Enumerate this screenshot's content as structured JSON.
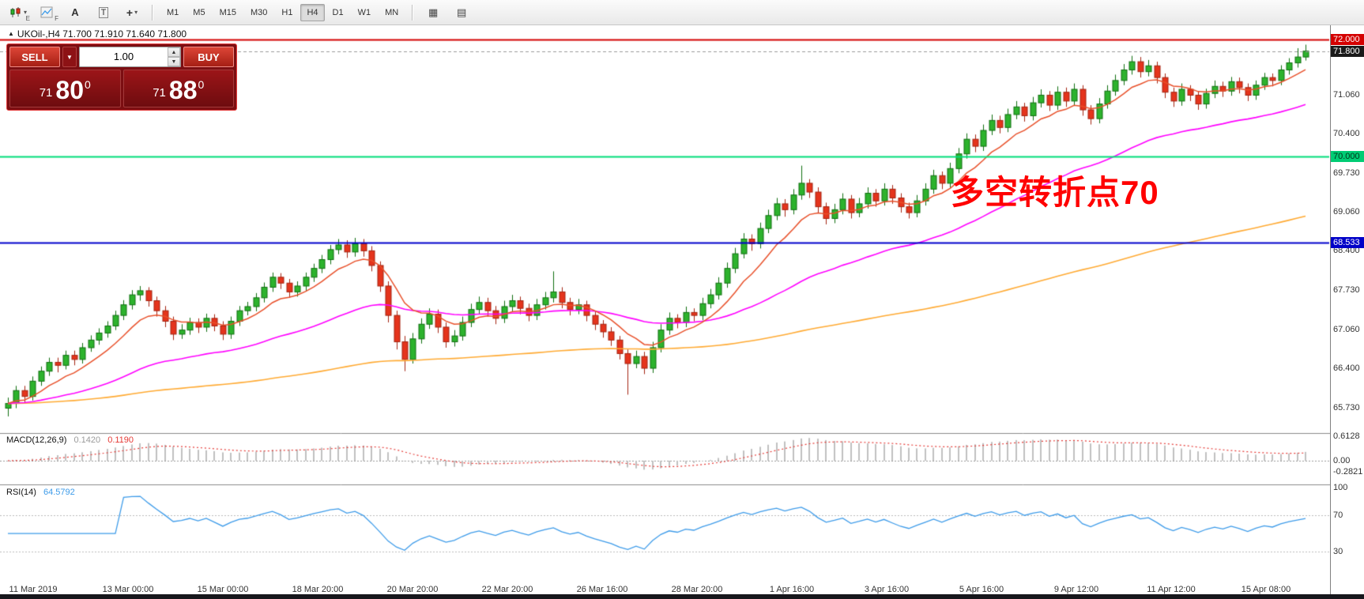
{
  "toolbar": {
    "letters": {
      "e": "E",
      "f": "F",
      "a": "A",
      "t": "T"
    },
    "crosshair_glyph": "+",
    "caret_glyph": "▾",
    "tile_icon_glyph": "▦",
    "list_icon_glyph": "▤",
    "timeframes": [
      "M1",
      "M5",
      "M15",
      "M30",
      "H1",
      "H4",
      "D1",
      "W1",
      "MN"
    ],
    "active_timeframe": "H4"
  },
  "header": {
    "collapse_icon": "▲",
    "symbol_line": "UKOil-,H4  71.700 71.910 71.640 71.800"
  },
  "trade_panel": {
    "sell_label": "SELL",
    "buy_label": "BUY",
    "volume": "1.00",
    "spin_up": "▲",
    "spin_down": "▼",
    "sell_caret": "▼",
    "bid_small": "71",
    "bid_big": "80",
    "bid_sup": "0",
    "ask_small": "71",
    "ask_big": "88",
    "ask_sup": "0"
  },
  "chart_data": {
    "type": "candlestick",
    "symbol": "UKOil-",
    "timeframe": "H4",
    "title": "UKOil-,H4",
    "ohlc_last": {
      "open": "71.700",
      "high": "71.910",
      "low": "71.640",
      "close": "71.800"
    },
    "ylim": [
      65.31,
      72.24
    ],
    "candle_colors": {
      "up_fill": "#2db32d",
      "up_border": "#0f6e0f",
      "down_fill": "#e5341c",
      "down_border": "#a32310"
    },
    "ma": {
      "fast": {
        "period": 9,
        "color": "#e8502a"
      },
      "mid": {
        "period": 42,
        "color": "#ff00ff"
      },
      "slow": {
        "period": 160,
        "color": "#ffaa33"
      }
    },
    "hlines": [
      {
        "price": 72.0,
        "color": "#d40000",
        "width": 2
      },
      {
        "price": 70.0,
        "color": "#00dd7a",
        "width": 2
      },
      {
        "price": 68.533,
        "color": "#0000cc",
        "width": 2
      }
    ],
    "bid_line": {
      "price": 71.8,
      "color": "#9a9a9a"
    },
    "price_axis_labels": [
      71.06,
      70.4,
      69.73,
      69.06,
      68.4,
      67.73,
      67.06,
      66.4,
      65.73
    ],
    "badges": [
      {
        "text": "72.000",
        "bg": "#d40000",
        "fg": "#ffffff",
        "price": 72.0
      },
      {
        "text": "71.800",
        "bg": "#1a1a1a",
        "fg": "#ffffff",
        "price": 71.8
      },
      {
        "text": "70.000",
        "bg": "#00cc74",
        "fg": "#00331a",
        "price": 70.0
      },
      {
        "text": "68.533",
        "bg": "#0000c8",
        "fg": "#ffffff",
        "price": 68.533
      }
    ],
    "annotation": {
      "text": "多空转折点70",
      "color": "#ff0000"
    },
    "macd": {
      "title": "MACD(12,26,9)",
      "value_main": "0.1420",
      "value_signal": "0.1190",
      "fast": 12,
      "slow": 26,
      "signal": 9,
      "range": [
        -0.58,
        0.68
      ],
      "axis": [
        {
          "v": 0.6128,
          "t": "0.6128"
        },
        {
          "v": 0,
          "t": "0.00"
        },
        {
          "v": -0.2821,
          "t": "-0.2821"
        }
      ],
      "hist_color": "#c0c0c0",
      "signal_color": "#e53935"
    },
    "rsi": {
      "title": "RSI(14)",
      "value": "64.5792",
      "period": 14,
      "levels": [
        70,
        30
      ],
      "range": [
        -2,
        103
      ],
      "axis": [
        {
          "v": 100,
          "t": "100"
        },
        {
          "v": 70,
          "t": "70"
        },
        {
          "v": 30,
          "t": "30"
        }
      ],
      "line_color": "#3d9be9"
    },
    "time_axis": {
      "labels": [
        "11 Mar 2019",
        "13 Mar 00:00",
        "15 Mar 00:00",
        "18 Mar 20:00",
        "20 Mar 20:00",
        "22 Mar 20:00",
        "26 Mar 16:00",
        "28 Mar 20:00",
        "1 Apr 16:00",
        "3 Apr 16:00",
        "5 Apr 16:00",
        "9 Apr 12:00",
        "11 Apr 12:00",
        "15 Apr 08:00"
      ]
    },
    "candles": [
      [
        65.72,
        65.9,
        65.58,
        65.8
      ],
      [
        65.8,
        66.1,
        65.72,
        66.02
      ],
      [
        66.02,
        66.1,
        65.8,
        65.92
      ],
      [
        65.92,
        66.26,
        65.85,
        66.18
      ],
      [
        66.18,
        66.43,
        66.1,
        66.35
      ],
      [
        66.35,
        66.58,
        66.27,
        66.5
      ],
      [
        66.5,
        66.58,
        66.33,
        66.45
      ],
      [
        66.45,
        66.7,
        66.38,
        66.62
      ],
      [
        66.62,
        66.7,
        66.45,
        66.55
      ],
      [
        66.55,
        66.83,
        66.48,
        66.75
      ],
      [
        66.75,
        66.96,
        66.68,
        66.88
      ],
      [
        66.88,
        67.08,
        66.8,
        67.0
      ],
      [
        67.0,
        67.2,
        66.92,
        67.12
      ],
      [
        67.12,
        67.38,
        67.05,
        67.3
      ],
      [
        67.3,
        67.56,
        67.22,
        67.48
      ],
      [
        67.48,
        67.73,
        67.4,
        67.65
      ],
      [
        67.65,
        67.8,
        67.55,
        67.72
      ],
      [
        67.72,
        67.78,
        67.45,
        67.55
      ],
      [
        67.55,
        67.62,
        67.28,
        67.38
      ],
      [
        67.38,
        67.46,
        67.1,
        67.2
      ],
      [
        67.2,
        67.28,
        66.88,
        66.98
      ],
      [
        66.98,
        67.15,
        66.9,
        67.05
      ],
      [
        67.05,
        67.26,
        66.97,
        67.18
      ],
      [
        67.18,
        67.25,
        67.0,
        67.1
      ],
      [
        67.1,
        67.33,
        67.02,
        67.25
      ],
      [
        67.25,
        67.32,
        67.03,
        67.12
      ],
      [
        67.12,
        67.2,
        66.88,
        66.98
      ],
      [
        66.98,
        67.28,
        66.9,
        67.2
      ],
      [
        67.2,
        67.46,
        67.12,
        67.38
      ],
      [
        67.38,
        67.53,
        67.3,
        67.45
      ],
      [
        67.45,
        67.68,
        67.37,
        67.6
      ],
      [
        67.6,
        67.86,
        67.52,
        67.78
      ],
      [
        67.78,
        68.03,
        67.7,
        67.95
      ],
      [
        67.95,
        68.02,
        67.75,
        67.85
      ],
      [
        67.85,
        67.92,
        67.6,
        67.7
      ],
      [
        67.7,
        67.88,
        67.62,
        67.8
      ],
      [
        67.8,
        68.03,
        67.72,
        67.95
      ],
      [
        67.95,
        68.18,
        67.87,
        68.1
      ],
      [
        68.1,
        68.33,
        68.02,
        68.25
      ],
      [
        68.25,
        68.5,
        68.17,
        68.42
      ],
      [
        68.42,
        68.6,
        68.34,
        68.5
      ],
      [
        68.5,
        68.58,
        68.28,
        68.38
      ],
      [
        68.38,
        68.62,
        68.3,
        68.52
      ],
      [
        68.52,
        68.6,
        68.3,
        68.4
      ],
      [
        68.4,
        68.48,
        68.05,
        68.15
      ],
      [
        68.15,
        68.22,
        67.7,
        67.8
      ],
      [
        67.8,
        67.88,
        67.18,
        67.3
      ],
      [
        67.3,
        67.38,
        66.72,
        66.85
      ],
      [
        66.85,
        66.95,
        66.35,
        66.55
      ],
      [
        66.55,
        67.0,
        66.48,
        66.9
      ],
      [
        66.9,
        67.25,
        66.82,
        67.15
      ],
      [
        67.15,
        67.42,
        67.07,
        67.32
      ],
      [
        67.32,
        67.4,
        67.0,
        67.1
      ],
      [
        67.1,
        67.18,
        66.75,
        66.85
      ],
      [
        66.85,
        67.05,
        66.77,
        66.95
      ],
      [
        66.95,
        67.28,
        66.87,
        67.18
      ],
      [
        67.18,
        67.5,
        67.1,
        67.4
      ],
      [
        67.4,
        67.62,
        67.32,
        67.52
      ],
      [
        67.52,
        67.6,
        67.28,
        67.38
      ],
      [
        67.38,
        67.46,
        67.15,
        67.25
      ],
      [
        67.25,
        67.55,
        67.17,
        67.45
      ],
      [
        67.45,
        67.65,
        67.37,
        67.55
      ],
      [
        67.55,
        67.62,
        67.32,
        67.42
      ],
      [
        67.42,
        67.5,
        67.2,
        67.3
      ],
      [
        67.3,
        67.58,
        67.22,
        67.48
      ],
      [
        67.48,
        67.7,
        67.4,
        67.6
      ],
      [
        67.6,
        68.05,
        67.52,
        67.7
      ],
      [
        67.7,
        67.78,
        67.42,
        67.52
      ],
      [
        67.52,
        67.6,
        67.3,
        67.4
      ],
      [
        67.4,
        67.58,
        67.32,
        67.48
      ],
      [
        67.48,
        67.55,
        67.2,
        67.3
      ],
      [
        67.3,
        67.38,
        67.05,
        67.15
      ],
      [
        67.15,
        67.22,
        66.92,
        67.02
      ],
      [
        67.02,
        67.1,
        66.78,
        66.88
      ],
      [
        66.88,
        66.95,
        66.55,
        66.65
      ],
      [
        66.65,
        66.72,
        65.95,
        66.48
      ],
      [
        66.48,
        66.7,
        66.4,
        66.6
      ],
      [
        66.6,
        66.68,
        66.3,
        66.4
      ],
      [
        66.4,
        66.85,
        66.32,
        66.75
      ],
      [
        66.75,
        67.15,
        66.67,
        67.05
      ],
      [
        67.05,
        67.35,
        66.97,
        67.25
      ],
      [
        67.25,
        67.32,
        67.08,
        67.18
      ],
      [
        67.18,
        67.45,
        67.1,
        67.35
      ],
      [
        67.35,
        67.42,
        67.2,
        67.3
      ],
      [
        67.3,
        67.6,
        67.22,
        67.5
      ],
      [
        67.5,
        67.75,
        67.42,
        67.65
      ],
      [
        67.65,
        67.95,
        67.57,
        67.85
      ],
      [
        67.85,
        68.2,
        67.77,
        68.1
      ],
      [
        68.1,
        68.45,
        68.02,
        68.35
      ],
      [
        68.35,
        68.7,
        68.27,
        68.6
      ],
      [
        68.6,
        68.68,
        68.4,
        68.52
      ],
      [
        68.52,
        68.88,
        68.44,
        68.78
      ],
      [
        68.78,
        69.1,
        68.7,
        69.0
      ],
      [
        69.0,
        69.3,
        68.92,
        69.2
      ],
      [
        69.2,
        69.28,
        68.98,
        69.1
      ],
      [
        69.1,
        69.45,
        69.02,
        69.35
      ],
      [
        69.35,
        69.85,
        69.27,
        69.55
      ],
      [
        69.55,
        69.62,
        69.3,
        69.4
      ],
      [
        69.4,
        69.48,
        69.05,
        69.15
      ],
      [
        69.15,
        69.22,
        68.85,
        68.95
      ],
      [
        68.95,
        69.2,
        68.87,
        69.1
      ],
      [
        69.1,
        69.38,
        69.02,
        69.28
      ],
      [
        69.28,
        69.35,
        68.95,
        69.05
      ],
      [
        69.05,
        69.3,
        68.97,
        69.2
      ],
      [
        69.2,
        69.48,
        69.12,
        69.38
      ],
      [
        69.38,
        69.45,
        69.15,
        69.25
      ],
      [
        69.25,
        69.55,
        69.17,
        69.45
      ],
      [
        69.45,
        69.52,
        69.2,
        69.3
      ],
      [
        69.3,
        69.38,
        69.05,
        69.15
      ],
      [
        69.15,
        69.22,
        68.95,
        69.05
      ],
      [
        69.05,
        69.35,
        68.97,
        69.25
      ],
      [
        69.25,
        69.55,
        69.17,
        69.45
      ],
      [
        69.45,
        69.78,
        69.37,
        69.68
      ],
      [
        69.68,
        69.75,
        69.45,
        69.55
      ],
      [
        69.55,
        69.9,
        69.47,
        69.8
      ],
      [
        69.8,
        70.15,
        69.72,
        70.05
      ],
      [
        70.05,
        70.4,
        69.97,
        70.3
      ],
      [
        70.3,
        70.38,
        70.08,
        70.18
      ],
      [
        70.18,
        70.55,
        70.1,
        70.45
      ],
      [
        70.45,
        70.72,
        70.37,
        70.62
      ],
      [
        70.62,
        70.7,
        70.4,
        70.5
      ],
      [
        70.5,
        70.82,
        70.42,
        70.72
      ],
      [
        70.72,
        70.95,
        70.64,
        70.85
      ],
      [
        70.85,
        70.92,
        70.6,
        70.7
      ],
      [
        70.7,
        71.02,
        70.62,
        70.92
      ],
      [
        70.92,
        71.15,
        70.84,
        71.05
      ],
      [
        71.05,
        71.12,
        70.78,
        70.88
      ],
      [
        70.88,
        71.2,
        70.8,
        71.1
      ],
      [
        71.1,
        71.18,
        70.85,
        70.95
      ],
      [
        70.95,
        71.25,
        70.87,
        71.15
      ],
      [
        71.15,
        71.22,
        70.7,
        70.8
      ],
      [
        70.8,
        70.88,
        70.55,
        70.65
      ],
      [
        70.65,
        71.0,
        70.57,
        70.9
      ],
      [
        70.9,
        71.22,
        70.82,
        71.12
      ],
      [
        71.12,
        71.4,
        71.04,
        71.3
      ],
      [
        71.3,
        71.58,
        71.22,
        71.48
      ],
      [
        71.48,
        71.72,
        71.4,
        71.62
      ],
      [
        71.62,
        71.7,
        71.35,
        71.45
      ],
      [
        71.45,
        71.65,
        71.37,
        71.55
      ],
      [
        71.55,
        71.62,
        71.25,
        71.35
      ],
      [
        71.35,
        71.42,
        71.0,
        71.1
      ],
      [
        71.1,
        71.18,
        70.85,
        70.95
      ],
      [
        70.95,
        71.25,
        70.87,
        71.15
      ],
      [
        71.15,
        71.22,
        70.95,
        71.05
      ],
      [
        71.05,
        71.12,
        70.8,
        70.9
      ],
      [
        70.9,
        71.16,
        70.82,
        71.08
      ],
      [
        71.08,
        71.3,
        71.0,
        71.2
      ],
      [
        71.2,
        71.28,
        71.02,
        71.12
      ],
      [
        71.12,
        71.36,
        71.04,
        71.28
      ],
      [
        71.28,
        71.35,
        71.08,
        71.18
      ],
      [
        71.18,
        71.25,
        70.95,
        71.05
      ],
      [
        71.05,
        71.3,
        70.97,
        71.22
      ],
      [
        71.22,
        71.43,
        71.14,
        71.35
      ],
      [
        71.35,
        71.42,
        71.2,
        71.3
      ],
      [
        71.3,
        71.56,
        71.22,
        71.48
      ],
      [
        71.48,
        71.68,
        71.4,
        71.6
      ],
      [
        71.6,
        71.85,
        71.52,
        71.7
      ],
      [
        71.7,
        71.91,
        71.64,
        71.8
      ]
    ]
  }
}
